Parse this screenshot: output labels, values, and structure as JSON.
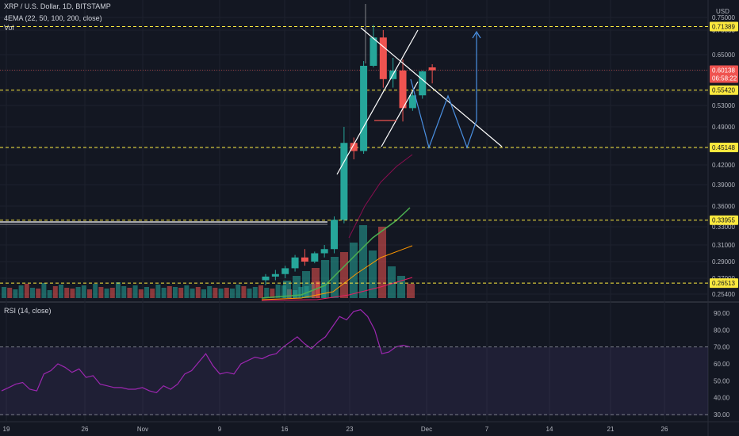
{
  "header": {
    "symbol_line": "XRP / U.S. Dollar, 1D, BITSTAMP",
    "ema_line": "4EMA (22, 50, 100, 200, close)",
    "vol_line": "Vol",
    "currency": "USD"
  },
  "rsi_panel": {
    "label": "RSI (14, close)",
    "ticks": [
      90,
      80,
      70,
      60,
      50,
      40,
      30
    ],
    "upper_band": 70,
    "lower_band": 30,
    "line_color": "#9c27b0",
    "values": [
      44,
      46,
      48,
      49,
      45,
      44,
      54,
      56,
      60,
      58,
      55,
      57,
      52,
      53,
      48,
      47,
      46,
      46,
      45,
      45,
      46,
      44,
      43,
      47,
      45,
      48,
      54,
      56,
      61,
      66,
      59,
      54,
      55,
      54,
      60,
      62,
      64,
      63,
      65,
      66,
      70,
      73,
      76,
      72,
      69,
      73,
      76,
      82,
      88,
      86,
      91,
      92,
      88,
      80,
      66,
      67,
      70,
      71,
      70
    ]
  },
  "price_panel": {
    "ticks": [
      "0.75000",
      "0.70000",
      "0.65000",
      "0.60000",
      "0.55000",
      "0.53000",
      "0.49000",
      "0.45000",
      "0.42000",
      "0.39000",
      "0.36000",
      "0.33000",
      "0.31000",
      "0.29000",
      "0.27000",
      "0.25400"
    ],
    "levels": [
      0.71389,
      0.5542,
      0.45148,
      0.33955,
      0.26513
    ],
    "level_labels": [
      "0.71389",
      "0.55420",
      "0.45148",
      "0.33955",
      "0.26513"
    ],
    "current_price": "0.60138",
    "countdown": "06:58:22",
    "up_color": "#26a69a",
    "down_color": "#ef5350",
    "level_color": "#fbe83e",
    "projection_color": "#4a90e2"
  },
  "chart_data": {
    "type": "candlestick",
    "title": "XRP / U.S. Dollar, 1D, BITSTAMP",
    "x_ticks": [
      "19",
      "26",
      "Nov",
      "9",
      "16",
      "23",
      "Dec",
      "7",
      "14",
      "21",
      "26"
    ],
    "y_unit": "USD",
    "candles": [
      {
        "date": "Nov 16",
        "open": 0.268,
        "high": 0.275,
        "low": 0.263,
        "close": 0.272
      },
      {
        "date": "Nov 17",
        "open": 0.272,
        "high": 0.28,
        "low": 0.268,
        "close": 0.275
      },
      {
        "date": "Nov 18",
        "open": 0.275,
        "high": 0.285,
        "low": 0.27,
        "close": 0.282
      },
      {
        "date": "Nov 19",
        "open": 0.282,
        "high": 0.298,
        "low": 0.278,
        "close": 0.295
      },
      {
        "date": "Nov 20",
        "open": 0.295,
        "high": 0.305,
        "low": 0.285,
        "close": 0.29
      },
      {
        "date": "Nov 21",
        "open": 0.29,
        "high": 0.302,
        "low": 0.288,
        "close": 0.3
      },
      {
        "date": "Nov 22",
        "open": 0.3,
        "high": 0.31,
        "low": 0.295,
        "close": 0.305
      },
      {
        "date": "Nov 23",
        "open": 0.305,
        "high": 0.345,
        "low": 0.3,
        "close": 0.34
      },
      {
        "date": "Nov 24",
        "open": 0.34,
        "high": 0.49,
        "low": 0.335,
        "close": 0.46
      },
      {
        "date": "Nov 25",
        "open": 0.46,
        "high": 0.47,
        "low": 0.43,
        "close": 0.445
      },
      {
        "date": "Nov 26",
        "open": 0.445,
        "high": 0.63,
        "low": 0.44,
        "close": 0.615
      },
      {
        "date": "Nov 27",
        "open": 0.615,
        "high": 0.72,
        "low": 0.61,
        "close": 0.685
      },
      {
        "date": "Nov 28",
        "open": 0.685,
        "high": 0.7,
        "low": 0.56,
        "close": 0.58
      },
      {
        "date": "Nov 29",
        "open": 0.58,
        "high": 0.64,
        "low": 0.56,
        "close": 0.6
      },
      {
        "date": "Nov 30",
        "open": 0.6,
        "high": 0.635,
        "low": 0.5,
        "close": 0.525
      },
      {
        "date": "Dec 1",
        "open": 0.525,
        "high": 0.55,
        "low": 0.52,
        "close": 0.545
      },
      {
        "date": "Dec 2",
        "open": 0.545,
        "high": 0.6,
        "low": 0.54,
        "close": 0.598
      },
      {
        "date": "Dec 3",
        "open": 0.61,
        "high": 0.62,
        "low": 0.57,
        "close": 0.601
      }
    ],
    "horizontal_levels": [
      0.71389,
      0.5542,
      0.45148,
      0.33955,
      0.26513
    ]
  }
}
